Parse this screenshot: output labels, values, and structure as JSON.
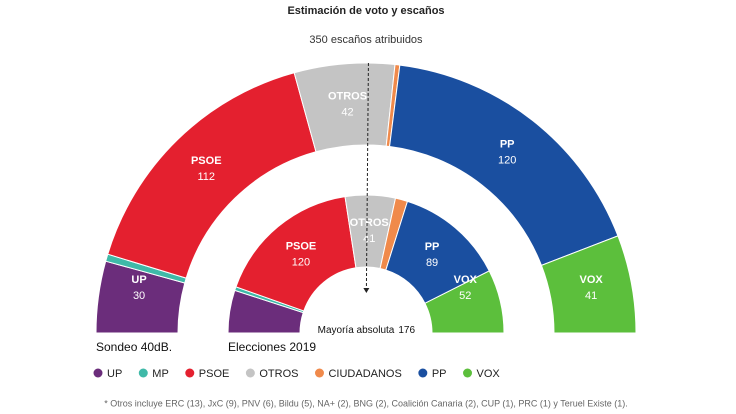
{
  "chart_data": {
    "type": "semicircle-donut",
    "title": "Estimación de voto y escaños",
    "subtitle": "350 escaños atribuidos",
    "categories": [
      "UP",
      "MP",
      "PSOE",
      "OTROS",
      "CIUDADANOS",
      "PP",
      "VOX"
    ],
    "colors": [
      "#6b2d7b",
      "#3fb9a8",
      "#e4202f",
      "#c4c4c4",
      "#f08a4b",
      "#1a4fa0",
      "#5cbf3c"
    ],
    "series": [
      {
        "name": "Sondeo 40dB.",
        "values": [
          30,
          3,
          112,
          42,
          2,
          120,
          41
        ]
      },
      {
        "name": "Elecciones 2019",
        "values": [
          35,
          3,
          120,
          41,
          10,
          89,
          52
        ]
      }
    ],
    "majority_label": "Mayoría absoluta",
    "majority": 176,
    "footnote": "* Otros incluye ERC (13), JxC (9), PNV (6), Bildu (5), NA+ (2), BNG (2), Coalición Canaria (2), CUP (1), PRC (1) y Teruel Existe (1)."
  }
}
